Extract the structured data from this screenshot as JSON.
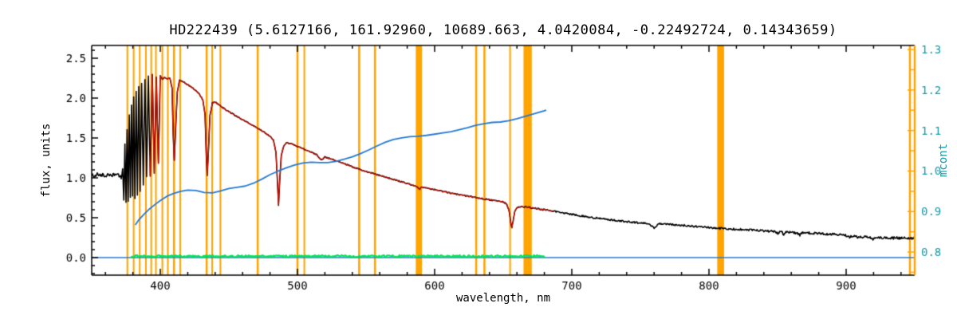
{
  "chart_data": {
    "type": "line",
    "title": "HD222439  (5.6127166, 161.92960, 10689.663, 4.0420084, -0.22492724, 0.14343659)",
    "xlabel": "wavelength, nm",
    "ylabel_left": "flux, units",
    "ylabel_right": "mcont",
    "x_range": [
      350,
      950
    ],
    "y_left_range": [
      -0.22,
      2.66
    ],
    "y_right_range": [
      0.743,
      1.31
    ],
    "x_ticks": [
      400,
      500,
      600,
      700,
      800,
      900
    ],
    "x_minor_step": 20,
    "y_left_ticks": [
      0.0,
      0.5,
      1.0,
      1.5,
      2.0,
      2.5
    ],
    "y_left_minor_step": 0.1,
    "y_right_ticks": [
      0.8,
      0.9,
      1.0,
      1.1,
      1.2,
      1.3
    ],
    "y_right_minor_step": 0.05,
    "grid": false,
    "legend": "none",
    "colors": {
      "frame": "#000000",
      "mask": "#FFA400",
      "right_axis": "#FFA400",
      "right_labels": "#119AA8",
      "spectrum": "#000000",
      "fit": "#D01000",
      "mcont": "#2579D2",
      "zero_line": "#2579D2",
      "residual": "#00E357"
    },
    "mask_bands": [
      [
        376.0,
        1.2
      ],
      [
        380.6,
        1.2
      ],
      [
        385.0,
        1.2
      ],
      [
        389.5,
        1.2
      ],
      [
        393.4,
        1.2
      ],
      [
        396.8,
        1.2
      ],
      [
        401.5,
        1.2
      ],
      [
        405.5,
        1.2
      ],
      [
        410.0,
        1.5
      ],
      [
        414.5,
        1.2
      ],
      [
        433.8,
        1.5
      ],
      [
        437.8,
        1.2
      ],
      [
        443.8,
        1.2
      ],
      [
        471.0,
        1.5
      ],
      [
        500.0,
        1.5
      ],
      [
        505.0,
        1.2
      ],
      [
        545.0,
        1.5
      ],
      [
        556.5,
        1.5
      ],
      [
        588.5,
        4.5
      ],
      [
        630.3,
        1.5
      ],
      [
        636.3,
        1.5
      ],
      [
        655.0,
        1.2
      ],
      [
        667.8,
        6.0
      ],
      [
        808.5,
        5.0
      ],
      [
        946.5,
        1.5
      ]
    ],
    "series": [
      {
        "name": "zero-line",
        "axis": "left",
        "color_key": "zero_line",
        "width": 1.3,
        "points": [
          [
            350,
            0.0
          ],
          [
            950,
            0.0
          ]
        ]
      },
      {
        "name": "residual",
        "axis": "left",
        "color_key": "residual",
        "width": 2.2,
        "step": 0.7,
        "noise": 0.012,
        "seed": 3,
        "points": [
          [
            379,
            0.018
          ],
          [
            680,
            0.018
          ]
        ]
      },
      {
        "name": "observed-spectrum",
        "axis": "left",
        "color_key": "spectrum",
        "width": 1.6,
        "step": 0.5,
        "seed": 7,
        "noise_profile": [
          [
            350,
            0.018
          ],
          [
            373,
            0.02
          ],
          [
            381,
            0.014
          ],
          [
            400,
            0.007
          ],
          [
            600,
            0.007
          ],
          [
            680,
            0.009
          ],
          [
            750,
            0.011
          ],
          [
            850,
            0.013
          ],
          [
            950,
            0.016
          ]
        ],
        "points": [
          [
            350,
            1.04
          ],
          [
            352,
            1.02
          ],
          [
            354,
            1.05
          ],
          [
            356,
            1.03
          ],
          [
            358,
            1.04
          ],
          [
            360,
            1.02
          ],
          [
            362,
            1.05
          ],
          [
            364,
            1.03
          ],
          [
            366,
            1.04
          ],
          [
            368,
            1.06
          ],
          [
            370,
            1.03
          ],
          [
            371.5,
            1.0
          ],
          [
            372.6,
            1.12
          ],
          [
            373.4,
            0.72
          ],
          [
            374.2,
            1.42
          ],
          [
            375.0,
            0.7
          ],
          [
            375.8,
            1.62
          ],
          [
            376.6,
            0.7
          ],
          [
            377.4,
            1.8
          ],
          [
            378.2,
            0.74
          ],
          [
            379.0,
            1.92
          ],
          [
            379.8,
            0.76
          ],
          [
            380.6,
            2.02
          ],
          [
            381.5,
            0.74
          ],
          [
            382.4,
            2.08
          ],
          [
            383.3,
            0.78
          ],
          [
            384.3,
            2.14
          ],
          [
            385.3,
            0.84
          ],
          [
            386.4,
            2.18
          ],
          [
            387.6,
            0.92
          ],
          [
            388.8,
            2.24
          ],
          [
            390.0,
            1.02
          ],
          [
            391.3,
            2.28
          ],
          [
            392.7,
            1.02
          ],
          [
            394.2,
            2.3
          ],
          [
            395.6,
            1.06
          ],
          [
            397.1,
            2.26
          ],
          [
            398.6,
            1.18
          ],
          [
            400.0,
            2.28
          ],
          [
            401.5,
            2.24
          ],
          [
            403,
            2.26
          ],
          [
            405,
            2.24
          ],
          [
            407,
            2.25
          ],
          [
            408.6,
            2.12
          ],
          [
            409.4,
            1.55
          ],
          [
            410.2,
            1.22
          ],
          [
            411.2,
            1.62
          ],
          [
            412.4,
            2.08
          ],
          [
            414,
            2.22
          ],
          [
            417,
            2.2
          ],
          [
            420,
            2.17
          ],
          [
            424,
            2.12
          ],
          [
            428,
            2.06
          ],
          [
            431,
            1.98
          ],
          [
            432.6,
            1.8
          ],
          [
            433.6,
            1.25
          ],
          [
            434.2,
            1.03
          ],
          [
            435.0,
            1.3
          ],
          [
            436.2,
            1.78
          ],
          [
            438,
            1.94
          ],
          [
            440,
            1.95
          ],
          [
            444,
            1.9
          ],
          [
            448,
            1.85
          ],
          [
            452,
            1.81
          ],
          [
            456,
            1.77
          ],
          [
            460,
            1.73
          ],
          [
            464,
            1.69
          ],
          [
            468,
            1.65
          ],
          [
            472,
            1.61
          ],
          [
            476,
            1.57
          ],
          [
            480,
            1.52
          ],
          [
            482.5,
            1.47
          ],
          [
            484.3,
            1.32
          ],
          [
            485.5,
            0.92
          ],
          [
            486.2,
            0.66
          ],
          [
            487.0,
            0.95
          ],
          [
            488.2,
            1.28
          ],
          [
            490,
            1.4
          ],
          [
            492,
            1.44
          ],
          [
            495,
            1.43
          ],
          [
            498,
            1.41
          ],
          [
            502,
            1.38
          ],
          [
            506,
            1.35
          ],
          [
            510,
            1.32
          ],
          [
            514,
            1.29
          ],
          [
            516.5,
            1.24
          ],
          [
            518,
            1.23
          ],
          [
            520,
            1.26
          ],
          [
            524,
            1.24
          ],
          [
            528,
            1.215
          ],
          [
            532,
            1.19
          ],
          [
            536,
            1.165
          ],
          [
            540,
            1.14
          ],
          [
            544,
            1.115
          ],
          [
            548,
            1.09
          ],
          [
            552,
            1.07
          ],
          [
            556,
            1.05
          ],
          [
            560,
            1.03
          ],
          [
            564,
            1.01
          ],
          [
            568,
            0.99
          ],
          [
            572,
            0.97
          ],
          [
            576,
            0.95
          ],
          [
            580,
            0.93
          ],
          [
            584,
            0.91
          ],
          [
            587.5,
            0.885
          ],
          [
            589.2,
            0.855
          ],
          [
            590.5,
            0.885
          ],
          [
            594,
            0.875
          ],
          [
            598,
            0.86
          ],
          [
            602,
            0.845
          ],
          [
            606,
            0.83
          ],
          [
            610,
            0.815
          ],
          [
            614,
            0.8
          ],
          [
            618,
            0.79
          ],
          [
            622,
            0.778
          ],
          [
            626,
            0.765
          ],
          [
            630,
            0.752
          ],
          [
            634,
            0.74
          ],
          [
            638,
            0.73
          ],
          [
            642,
            0.72
          ],
          [
            646,
            0.71
          ],
          [
            650,
            0.7
          ],
          [
            652.5,
            0.675
          ],
          [
            654.3,
            0.585
          ],
          [
            655.6,
            0.43
          ],
          [
            656.3,
            0.375
          ],
          [
            657.2,
            0.46
          ],
          [
            658.5,
            0.585
          ],
          [
            660,
            0.625
          ],
          [
            663,
            0.64
          ],
          [
            666,
            0.635
          ],
          [
            670,
            0.625
          ],
          [
            674,
            0.615
          ],
          [
            678,
            0.605
          ],
          [
            682,
            0.595
          ],
          [
            686,
            0.585
          ],
          [
            690,
            0.572
          ],
          [
            695,
            0.558
          ],
          [
            700,
            0.543
          ],
          [
            705,
            0.528
          ],
          [
            710,
            0.515
          ],
          [
            715,
            0.503
          ],
          [
            720,
            0.492
          ],
          [
            725,
            0.481
          ],
          [
            730,
            0.47
          ],
          [
            735,
            0.46
          ],
          [
            740,
            0.451
          ],
          [
            745,
            0.443
          ],
          [
            750,
            0.436
          ],
          [
            754,
            0.43
          ],
          [
            757,
            0.418
          ],
          [
            759,
            0.385
          ],
          [
            760.5,
            0.368
          ],
          [
            762,
            0.408
          ],
          [
            764,
            0.425
          ],
          [
            768,
            0.423
          ],
          [
            772,
            0.418
          ],
          [
            776,
            0.412
          ],
          [
            780,
            0.406
          ],
          [
            784,
            0.4
          ],
          [
            788,
            0.394
          ],
          [
            792,
            0.388
          ],
          [
            796,
            0.382
          ],
          [
            800,
            0.377
          ],
          [
            805,
            0.371
          ],
          [
            810,
            0.366
          ],
          [
            815,
            0.361
          ],
          [
            820,
            0.356
          ],
          [
            825,
            0.351
          ],
          [
            830,
            0.346
          ],
          [
            835,
            0.341
          ],
          [
            840,
            0.336
          ],
          [
            845,
            0.331
          ],
          [
            848.5,
            0.322
          ],
          [
            850.2,
            0.298
          ],
          [
            851.5,
            0.322
          ],
          [
            853.2,
            0.318
          ],
          [
            854.4,
            0.29
          ],
          [
            855.8,
            0.318
          ],
          [
            858,
            0.318
          ],
          [
            861,
            0.315
          ],
          [
            864,
            0.308
          ],
          [
            866.3,
            0.282
          ],
          [
            867.8,
            0.308
          ],
          [
            870,
            0.312
          ],
          [
            874,
            0.308
          ],
          [
            878,
            0.304
          ],
          [
            882,
            0.299
          ],
          [
            886,
            0.295
          ],
          [
            890,
            0.291
          ],
          [
            894,
            0.287
          ],
          [
            898,
            0.283
          ],
          [
            901,
            0.272
          ],
          [
            902.5,
            0.252
          ],
          [
            904,
            0.268
          ],
          [
            907,
            0.265
          ],
          [
            909.5,
            0.245
          ],
          [
            911,
            0.262
          ],
          [
            914,
            0.258
          ],
          [
            917,
            0.252
          ],
          [
            919.5,
            0.235
          ],
          [
            921.5,
            0.252
          ],
          [
            925,
            0.252
          ],
          [
            928,
            0.246
          ],
          [
            931,
            0.25
          ],
          [
            934,
            0.245
          ],
          [
            937,
            0.249
          ],
          [
            940,
            0.244
          ],
          [
            943,
            0.248
          ],
          [
            946,
            0.243
          ],
          [
            950,
            0.247
          ]
        ]
      },
      {
        "name": "model-fit",
        "axis": "left",
        "color_key": "fit",
        "width": 1.3,
        "step": 0.6,
        "clip": [
          392.5,
          686
        ],
        "points_ref": "observed-spectrum"
      },
      {
        "name": "mcont",
        "axis": "right",
        "color_key": "mcont",
        "width": 1.8,
        "points": [
          [
            382,
            0.868
          ],
          [
            384,
            0.878
          ],
          [
            388,
            0.893
          ],
          [
            392,
            0.906
          ],
          [
            396,
            0.917
          ],
          [
            400,
            0.927
          ],
          [
            405,
            0.938
          ],
          [
            410,
            0.945
          ],
          [
            415,
            0.95
          ],
          [
            420,
            0.953
          ],
          [
            426,
            0.952
          ],
          [
            432,
            0.947
          ],
          [
            438,
            0.946
          ],
          [
            444,
            0.951
          ],
          [
            450,
            0.957
          ],
          [
            456,
            0.96
          ],
          [
            462,
            0.963
          ],
          [
            468,
            0.97
          ],
          [
            474,
            0.98
          ],
          [
            480,
            0.991
          ],
          [
            486,
            1.0
          ],
          [
            492,
            1.008
          ],
          [
            498,
            1.015
          ],
          [
            504,
            1.02
          ],
          [
            510,
            1.022
          ],
          [
            516,
            1.021
          ],
          [
            522,
            1.021
          ],
          [
            528,
            1.024
          ],
          [
            534,
            1.029
          ],
          [
            540,
            1.035
          ],
          [
            546,
            1.043
          ],
          [
            552,
            1.052
          ],
          [
            558,
            1.062
          ],
          [
            564,
            1.071
          ],
          [
            570,
            1.078
          ],
          [
            576,
            1.082
          ],
          [
            582,
            1.085
          ],
          [
            588,
            1.086
          ],
          [
            594,
            1.088
          ],
          [
            600,
            1.091
          ],
          [
            606,
            1.094
          ],
          [
            612,
            1.097
          ],
          [
            618,
            1.102
          ],
          [
            624,
            1.107
          ],
          [
            630,
            1.113
          ],
          [
            636,
            1.117
          ],
          [
            642,
            1.12
          ],
          [
            648,
            1.121
          ],
          [
            654,
            1.124
          ],
          [
            660,
            1.129
          ],
          [
            666,
            1.135
          ],
          [
            672,
            1.141
          ],
          [
            678,
            1.147
          ],
          [
            681,
            1.15
          ]
        ]
      }
    ]
  }
}
